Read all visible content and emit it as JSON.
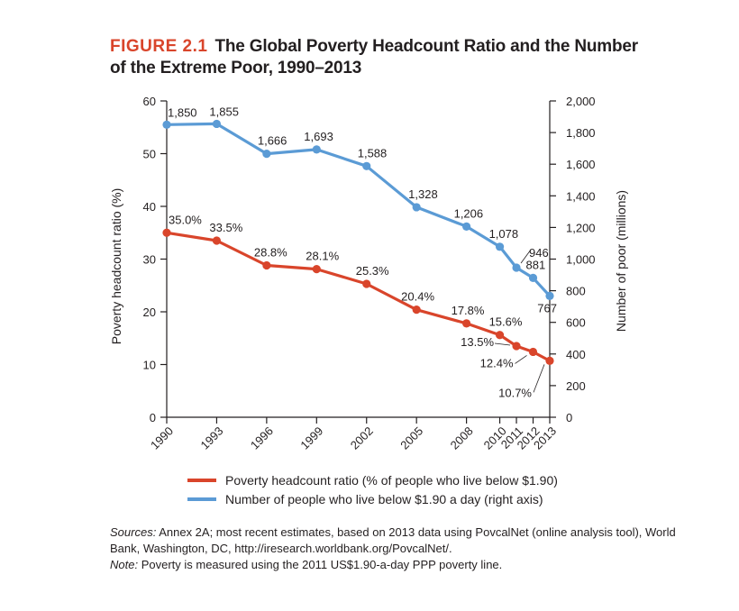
{
  "figure": {
    "label": "FIGURE 2.1",
    "title": "The Global Poverty Headcount Ratio and the Number of the Extreme Poor, 1990–2013"
  },
  "chart_data": {
    "type": "line",
    "x": [
      1990,
      1993,
      1996,
      1999,
      2002,
      2005,
      2008,
      2010,
      2011,
      2012,
      2013
    ],
    "x_tick_labels": [
      "1990",
      "1993",
      "1996",
      "1999",
      "2002",
      "2005",
      "2008",
      "2010",
      "2011",
      "2012",
      "2013"
    ],
    "xlim": [
      1990,
      2013
    ],
    "y_left": {
      "label": "Poverty headcount ratio (%)",
      "lim": [
        0,
        60
      ],
      "ticks": [
        0,
        10,
        20,
        30,
        40,
        50,
        60
      ]
    },
    "y_right": {
      "label": "Number of poor (millions)",
      "lim": [
        0,
        2000
      ],
      "ticks": [
        0,
        200,
        400,
        600,
        800,
        1000,
        1200,
        1400,
        1600,
        1800,
        2000
      ],
      "tick_labels": [
        "0",
        "200",
        "400",
        "600",
        "800",
        "1,000",
        "1,200",
        "1,400",
        "1,600",
        "1,800",
        "2,000"
      ]
    },
    "series": [
      {
        "name": "Poverty headcount ratio (% of people who live below $1.90)",
        "axis": "left",
        "color": "#d9452b",
        "values": [
          35.0,
          33.5,
          28.8,
          28.1,
          25.3,
          20.4,
          17.8,
          15.6,
          13.5,
          12.4,
          10.7
        ],
        "labels": [
          "35.0%",
          "33.5%",
          "28.8%",
          "28.1%",
          "25.3%",
          "20.4%",
          "17.8%",
          "15.6%",
          "13.5%",
          "12.4%",
          "10.7%"
        ]
      },
      {
        "name": "Number of people who live below $1.90 a day (right axis)",
        "axis": "right",
        "color": "#5b9bd5",
        "values": [
          1850,
          1855,
          1666,
          1693,
          1588,
          1328,
          1206,
          1078,
          946,
          881,
          767
        ],
        "labels": [
          "1,850",
          "1,855",
          "1,666",
          "1,693",
          "1,588",
          "1,328",
          "1,206",
          "1,078",
          "946",
          "881",
          "767"
        ]
      }
    ],
    "legend_position": "bottom",
    "grid": false
  },
  "notes": {
    "sources_label": "Sources:",
    "sources_text": " Annex 2A; most recent estimates, based on 2013 data using PovcalNet (online analysis tool), World Bank, Washington, DC, http://iresearch.worldbank.org/PovcalNet/.",
    "note_label": "Note:",
    "note_text": " Poverty is measured using the 2011 US$1.90-a-day PPP poverty line."
  }
}
